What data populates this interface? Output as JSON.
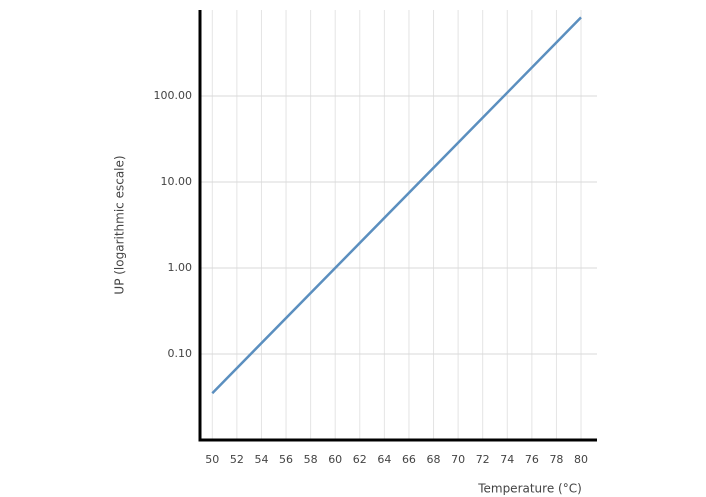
{
  "chart_data": {
    "type": "line",
    "x_label": "Temperature (°C)",
    "y_label": "UP (logarithmic escale)",
    "x": [
      50,
      60,
      70,
      80
    ],
    "series": [
      {
        "name": "UP",
        "color": "#5b8fbf",
        "values": [
          0.035,
          1.0,
          28.6,
          820
        ]
      }
    ],
    "xlim": [
      49,
      81.3
    ],
    "xticks": [
      50,
      52,
      54,
      56,
      58,
      60,
      62,
      64,
      66,
      68,
      70,
      72,
      74,
      76,
      78,
      80
    ],
    "ylim": [
      0.01,
      1000
    ],
    "yscale": "log",
    "yticks": [
      {
        "value": 0.1,
        "label": "0.10"
      },
      {
        "value": 1,
        "label": "1.00"
      },
      {
        "value": 10,
        "label": "10.00"
      },
      {
        "value": 100,
        "label": "100.00"
      }
    ],
    "grid": true
  }
}
